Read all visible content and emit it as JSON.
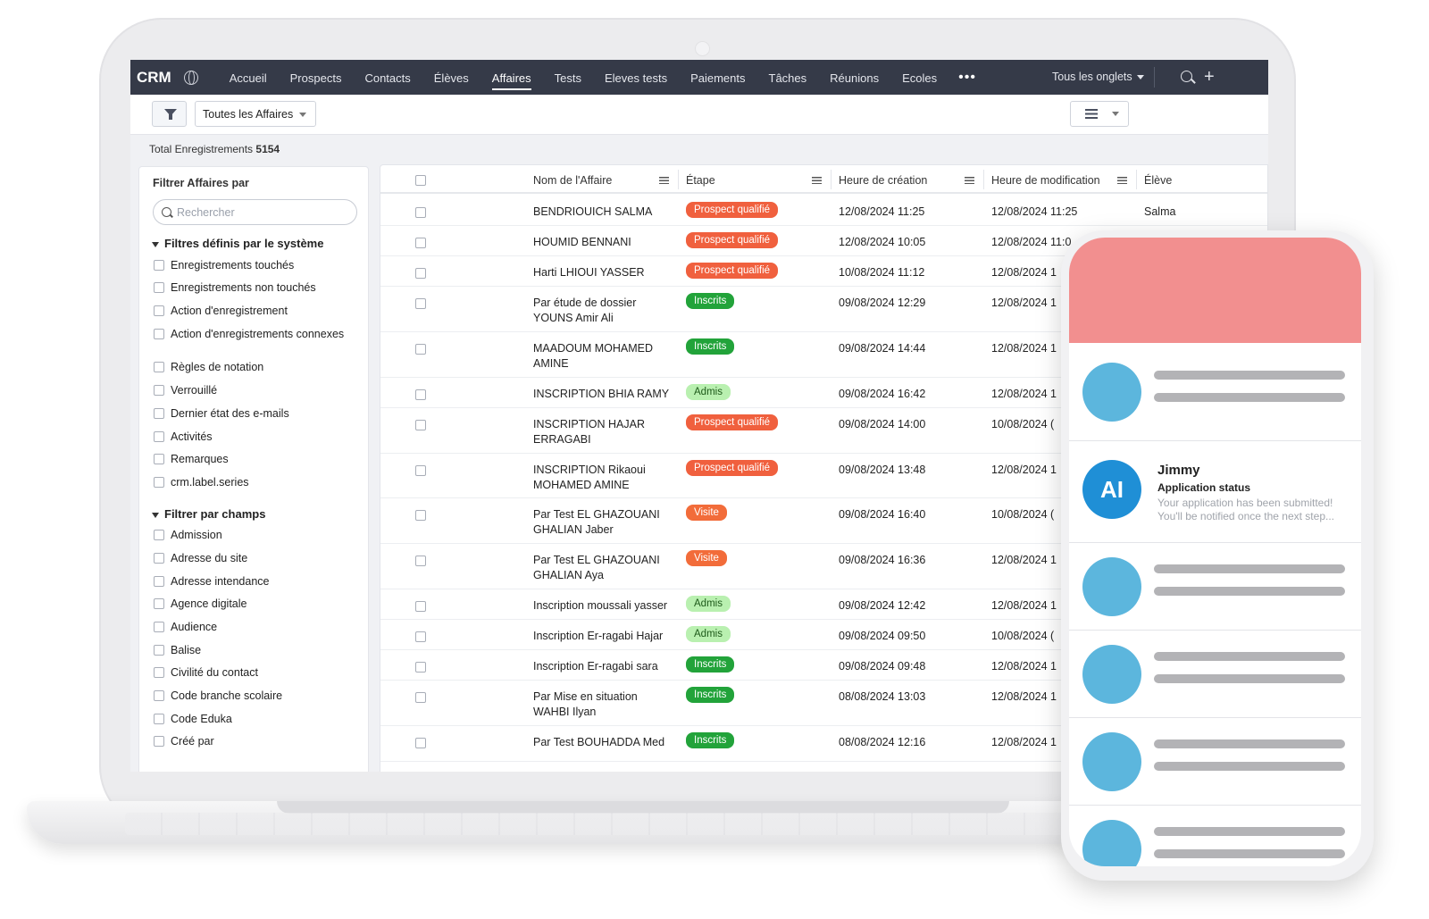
{
  "app": {
    "brand": "CRM"
  },
  "nav": {
    "items": [
      "Accueil",
      "Prospects",
      "Contacts",
      "Élèves",
      "Affaires",
      "Tests",
      "Eleves tests",
      "Paiements",
      "Tâches",
      "Réunions",
      "Ecoles"
    ],
    "active": "Affaires",
    "more": "•••",
    "all_tabs": "Tous les onglets"
  },
  "toolbar": {
    "view": "Toutes les Affaires"
  },
  "total": {
    "label": "Total Enregistrements",
    "count": "5154"
  },
  "filters": {
    "title": "Filtrer Affaires par",
    "search_placeholder": "Rechercher",
    "system_title": "Filtres définis par le système",
    "system": [
      "Enregistrements touchés",
      "Enregistrements non touchés",
      "Action d'enregistrement",
      "Action d'enregistrements connexes",
      "Règles de notation",
      "Verrouillé",
      "Dernier état des e-mails",
      "Activités",
      "Remarques",
      "crm.label.series"
    ],
    "fields_title": "Filtrer par champs",
    "fields": [
      "Admission",
      "Adresse du site",
      "Adresse intendance",
      "Agence digitale",
      "Audience",
      "Balise",
      "Civilité du contact",
      "Code branche scolaire",
      "Code Eduka",
      "Créé par"
    ]
  },
  "table": {
    "columns": [
      "Nom de l'Affaire",
      "Étape",
      "Heure de création",
      "Heure de modification",
      "Élève"
    ],
    "rows": [
      {
        "name": "BENDRIOUICH SALMA",
        "stage": "Prospect qualifié",
        "created": "12/08/2024 11:25",
        "modified": "12/08/2024 11:25",
        "eleve": "Salma"
      },
      {
        "name": "HOUMID BENNANI",
        "stage": "Prospect qualifié",
        "created": "12/08/2024 10:05",
        "modified": "12/08/2024 11:0",
        "eleve": ""
      },
      {
        "name": "Harti LHIOUI YASSER",
        "stage": "Prospect qualifié",
        "created": "10/08/2024 11:12",
        "modified": "12/08/2024 1",
        "eleve": ""
      },
      {
        "name": "Par étude de dossier YOUNS Amir Ali",
        "stage": "Inscrits",
        "created": "09/08/2024 12:29",
        "modified": "12/08/2024 1",
        "eleve": ""
      },
      {
        "name": "MAADOUM MOHAMED AMINE",
        "stage": "Inscrits",
        "created": "09/08/2024 14:44",
        "modified": "12/08/2024 1",
        "eleve": ""
      },
      {
        "name": "INSCRIPTION BHIA RAMY",
        "stage": "Admis",
        "created": "09/08/2024 16:42",
        "modified": "12/08/2024 1",
        "eleve": ""
      },
      {
        "name": "INSCRIPTION HAJAR ERRAGABI",
        "stage": "Prospect qualifié",
        "created": "09/08/2024 14:00",
        "modified": "10/08/2024 (",
        "eleve": ""
      },
      {
        "name": "INSCRIPTION Rikaoui MOHAMED AMINE",
        "stage": "Prospect qualifié",
        "created": "09/08/2024 13:48",
        "modified": "12/08/2024 1",
        "eleve": ""
      },
      {
        "name": "Par Test EL GHAZOUANI GHALIAN Jaber",
        "stage": "Visite",
        "created": "09/08/2024 16:40",
        "modified": "10/08/2024 (",
        "eleve": ""
      },
      {
        "name": "Par Test EL GHAZOUANI GHALIAN Aya",
        "stage": "Visite",
        "created": "09/08/2024 16:36",
        "modified": "12/08/2024 1",
        "eleve": ""
      },
      {
        "name": "Inscription moussali yasser",
        "stage": "Admis",
        "created": "09/08/2024 12:42",
        "modified": "12/08/2024 1",
        "eleve": ""
      },
      {
        "name": "Inscription Er-ragabi Hajar",
        "stage": "Admis",
        "created": "09/08/2024 09:50",
        "modified": "10/08/2024 (",
        "eleve": ""
      },
      {
        "name": "Inscription Er-ragabi sara",
        "stage": "Inscrits",
        "created": "09/08/2024 09:48",
        "modified": "12/08/2024 1",
        "eleve": ""
      },
      {
        "name": "Par Mise en situation WAHBI Ilyan",
        "stage": "Inscrits",
        "created": "08/08/2024 13:03",
        "modified": "12/08/2024 1",
        "eleve": ""
      },
      {
        "name": "Par Test BOUHADDA Med",
        "stage": "Inscrits",
        "created": "08/08/2024 12:16",
        "modified": "12/08/2024 1",
        "eleve": ""
      }
    ]
  },
  "phone": {
    "notification": {
      "avatar": "AI",
      "name": "Jimmy",
      "subject": "Application status",
      "message_1": "Your application has been submitted!",
      "message_2": "You'll be notified once the next step..."
    }
  },
  "colors": {
    "nav_bg": "#353a48",
    "prospect": "#f0603e",
    "inscrits": "#22a33a",
    "admis": "#b9f0b0",
    "visite": "#f26c3a",
    "phone_header": "#f28f8f",
    "avatar": "#5cb6dd",
    "ai_avatar": "#1f8fd6"
  }
}
